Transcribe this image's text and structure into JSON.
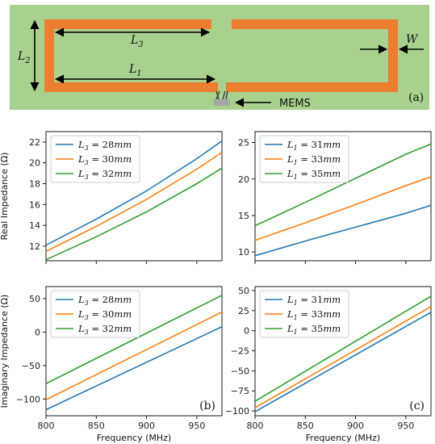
{
  "diagram": {
    "panel_label": "(a)",
    "labels": {
      "l3": "L3",
      "l1": "L1",
      "l2": "L2",
      "w": "W",
      "mems": "MEMS"
    },
    "colors": {
      "background": "#a9d18e",
      "trace": "#ed7d31",
      "mems": "#a6a6a6"
    }
  },
  "chart_data": [
    {
      "id": "real-l3",
      "type": "line",
      "xlabel": "",
      "ylabel": "Real Impedance (Ω)",
      "xlim": [
        800,
        975
      ],
      "ylim": [
        10.6,
        23.0
      ],
      "xticks": [
        "800",
        "850",
        "900",
        "950"
      ],
      "xtick_values": [
        800,
        850,
        900,
        950
      ],
      "yticks": [
        "12",
        "14",
        "16",
        "18",
        "20",
        "22"
      ],
      "ytick_values": [
        12,
        14,
        16,
        18,
        20,
        22
      ],
      "show_xticklabels": false,
      "series": [
        {
          "name": "L3 = 28mm",
          "sym": "L",
          "sub": "3",
          "eq": " = 28",
          "unit": "mm",
          "color": "#1f77b4",
          "x": [
            800,
            850,
            900,
            950,
            975
          ],
          "y": [
            12.1,
            14.6,
            17.3,
            20.4,
            22.1
          ]
        },
        {
          "name": "L3 = 30mm",
          "sym": "L",
          "sub": "3",
          "eq": " = 30",
          "unit": "mm",
          "color": "#ff7f0e",
          "x": [
            800,
            850,
            900,
            950,
            975
          ],
          "y": [
            11.5,
            13.9,
            16.5,
            19.4,
            21.0
          ]
        },
        {
          "name": "L3 = 32mm",
          "sym": "L",
          "sub": "3",
          "eq": " = 32",
          "unit": "mm",
          "color": "#2ca02c",
          "x": [
            800,
            850,
            900,
            950,
            975
          ],
          "y": [
            10.7,
            12.9,
            15.3,
            18.0,
            19.5
          ]
        }
      ]
    },
    {
      "id": "real-l1",
      "type": "line",
      "xlabel": "",
      "ylabel": "",
      "xlim": [
        800,
        975
      ],
      "ylim": [
        8.8,
        26.5
      ],
      "xticks": [
        "800",
        "850",
        "900",
        "950"
      ],
      "xtick_values": [
        800,
        850,
        900,
        950
      ],
      "yticks": [
        "10",
        "15",
        "20",
        "25"
      ],
      "ytick_values": [
        10,
        15,
        20,
        25
      ],
      "show_xticklabels": false,
      "series": [
        {
          "name": "L1 = 31mm",
          "sym": "L",
          "sub": "1",
          "eq": " = 31",
          "unit": "mm",
          "color": "#1f77b4",
          "x": [
            800,
            850,
            900,
            950,
            975
          ],
          "y": [
            9.5,
            11.5,
            13.4,
            15.3,
            16.4
          ]
        },
        {
          "name": "L1 = 33mm",
          "sym": "L",
          "sub": "1",
          "eq": " = 33",
          "unit": "mm",
          "color": "#ff7f0e",
          "x": [
            800,
            850,
            900,
            950,
            975
          ],
          "y": [
            11.6,
            14.0,
            16.5,
            19.1,
            20.3
          ]
        },
        {
          "name": "L1 = 35mm",
          "sym": "L",
          "sub": "1",
          "eq": " = 35",
          "unit": "mm",
          "color": "#2ca02c",
          "x": [
            800,
            850,
            900,
            950,
            975
          ],
          "y": [
            13.6,
            16.8,
            20.1,
            23.4,
            24.8
          ]
        }
      ]
    },
    {
      "id": "imag-l3",
      "type": "line",
      "xlabel": "Frequency (MHz)",
      "ylabel": "Imaginary Impedance (Ω)",
      "panel_label": "(b)",
      "xlim": [
        800,
        975
      ],
      "ylim": [
        -125,
        68
      ],
      "xticks": [
        "800",
        "850",
        "900",
        "950"
      ],
      "xtick_values": [
        800,
        850,
        900,
        950
      ],
      "yticks": [
        "−100",
        "−50",
        "0",
        "50"
      ],
      "ytick_values": [
        -100,
        -50,
        0,
        50
      ],
      "show_xticklabels": true,
      "series": [
        {
          "name": "L3 = 28mm",
          "sym": "L",
          "sub": "3",
          "eq": " = 28",
          "unit": "mm",
          "color": "#1f77b4",
          "x": [
            800,
            975
          ],
          "y": [
            -116,
            8
          ]
        },
        {
          "name": "L3 = 30mm",
          "sym": "L",
          "sub": "3",
          "eq": " = 30",
          "unit": "mm",
          "color": "#ff7f0e",
          "x": [
            800,
            975
          ],
          "y": [
            -101,
            30
          ]
        },
        {
          "name": "L3 = 32mm",
          "sym": "L",
          "sub": "3",
          "eq": " = 32",
          "unit": "mm",
          "color": "#2ca02c",
          "x": [
            800,
            975
          ],
          "y": [
            -77,
            55
          ]
        }
      ]
    },
    {
      "id": "imag-l1",
      "type": "line",
      "xlabel": "Frequency (MHz)",
      "ylabel": "",
      "panel_label": "(c)",
      "xlim": [
        800,
        975
      ],
      "ylim": [
        -106,
        55
      ],
      "xticks": [
        "800",
        "850",
        "900",
        "950"
      ],
      "xtick_values": [
        800,
        850,
        900,
        950
      ],
      "yticks": [
        "−100",
        "−75",
        "−50",
        "−25",
        "0",
        "25",
        "50"
      ],
      "ytick_values": [
        -100,
        -75,
        -50,
        -25,
        0,
        25,
        50
      ],
      "show_xticklabels": true,
      "series": [
        {
          "name": "L1 = 31mm",
          "sym": "L",
          "sub": "1",
          "eq": " = 31",
          "unit": "mm",
          "color": "#1f77b4",
          "x": [
            800,
            975
          ],
          "y": [
            -101,
            23
          ]
        },
        {
          "name": "L1 = 33mm",
          "sym": "L",
          "sub": "1",
          "eq": " = 33",
          "unit": "mm",
          "color": "#ff7f0e",
          "x": [
            800,
            975
          ],
          "y": [
            -96,
            30
          ]
        },
        {
          "name": "L1 = 35mm",
          "sym": "L",
          "sub": "1",
          "eq": " = 35",
          "unit": "mm",
          "color": "#2ca02c",
          "x": [
            800,
            975
          ],
          "y": [
            -88,
            43
          ]
        }
      ]
    }
  ]
}
